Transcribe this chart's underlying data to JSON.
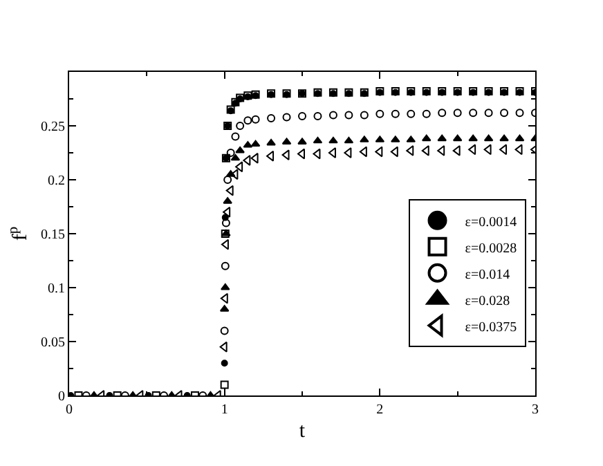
{
  "chart_data": {
    "type": "scatter",
    "xlabel": "t",
    "ylabel": "f$^{p}$",
    "series": [
      {
        "name": "ε=0.0014",
        "color": "#000000",
        "marker": "circle",
        "x": [
          0.01,
          0.26,
          0.51,
          0.76,
          1,
          1.005,
          1.01,
          1.02,
          1.04,
          1.07,
          1.1,
          1.15,
          1.2,
          1.3,
          1.4,
          1.5,
          1.6,
          1.7,
          1.8,
          1.9,
          2,
          2.1,
          2.2,
          2.3,
          2.4,
          2.5,
          2.6,
          2.7,
          2.8,
          2.9,
          3
        ],
        "values": [
          0,
          0,
          0,
          0,
          0.03,
          0.165,
          0.22,
          0.25,
          0.264,
          0.271,
          0.275,
          0.277,
          0.278,
          0.279,
          0.279,
          0.28,
          0.28,
          0.28,
          0.28,
          0.28,
          0.281,
          0.281,
          0.281,
          0.281,
          0.281,
          0.281,
          0.281,
          0.281,
          0.281,
          0.281,
          0.281
        ]
      },
      {
        "name": "ε=0.0028",
        "color": "#000000",
        "marker": "square",
        "x": [
          0.06,
          0.31,
          0.56,
          0.81,
          1,
          1.005,
          1.01,
          1.02,
          1.04,
          1.07,
          1.1,
          1.15,
          1.2,
          1.3,
          1.4,
          1.5,
          1.6,
          1.7,
          1.8,
          1.9,
          2,
          2.1,
          2.2,
          2.3,
          2.4,
          2.5,
          2.6,
          2.7,
          2.8,
          2.9,
          3
        ],
        "values": [
          0,
          0,
          0,
          0,
          0.01,
          0.15,
          0.22,
          0.25,
          0.265,
          0.272,
          0.276,
          0.278,
          0.279,
          0.28,
          0.28,
          0.28,
          0.281,
          0.281,
          0.281,
          0.281,
          0.282,
          0.282,
          0.282,
          0.282,
          0.282,
          0.282,
          0.282,
          0.282,
          0.282,
          0.282,
          0.282
        ]
      },
      {
        "name": "ε=0.014",
        "color": "#000000",
        "marker": "circle",
        "x": [
          0.11,
          0.36,
          0.61,
          0.86,
          1,
          1.005,
          1.01,
          1.02,
          1.04,
          1.07,
          1.1,
          1.15,
          1.2,
          1.3,
          1.4,
          1.5,
          1.6,
          1.7,
          1.8,
          1.9,
          2,
          2.1,
          2.2,
          2.3,
          2.4,
          2.5,
          2.6,
          2.7,
          2.8,
          2.9,
          3
        ],
        "values": [
          0,
          0,
          0,
          0,
          0.06,
          0.12,
          0.16,
          0.2,
          0.225,
          0.24,
          0.25,
          0.255,
          0.256,
          0.257,
          0.258,
          0.259,
          0.259,
          0.26,
          0.26,
          0.26,
          0.261,
          0.261,
          0.261,
          0.261,
          0.262,
          0.262,
          0.262,
          0.262,
          0.262,
          0.262,
          0.262
        ]
      },
      {
        "name": "ε=0.028",
        "color": "#000000",
        "marker": "triangle",
        "x": [
          0.16,
          0.41,
          0.66,
          0.91,
          1,
          1.005,
          1.01,
          1.02,
          1.04,
          1.07,
          1.1,
          1.15,
          1.2,
          1.3,
          1.4,
          1.5,
          1.6,
          1.7,
          1.8,
          1.9,
          2,
          2.1,
          2.2,
          2.3,
          2.4,
          2.5,
          2.6,
          2.7,
          2.8,
          2.9,
          3
        ],
        "values": [
          0,
          0,
          0,
          0,
          0.08,
          0.1,
          0.15,
          0.18,
          0.205,
          0.22,
          0.227,
          0.232,
          0.233,
          0.234,
          0.235,
          0.235,
          0.236,
          0.236,
          0.236,
          0.237,
          0.237,
          0.237,
          0.237,
          0.238,
          0.238,
          0.238,
          0.238,
          0.238,
          0.238,
          0.238,
          0.238
        ]
      },
      {
        "name": "ε=0.0375",
        "color": "#000000",
        "marker": "triangle",
        "x": [
          0.21,
          0.46,
          0.71,
          0.96,
          1,
          1.005,
          1.01,
          1.02,
          1.04,
          1.07,
          1.1,
          1.15,
          1.2,
          1.3,
          1.4,
          1.5,
          1.6,
          1.7,
          1.8,
          1.9,
          2,
          2.1,
          2.2,
          2.3,
          2.4,
          2.5,
          2.6,
          2.7,
          2.8,
          2.9,
          3
        ],
        "values": [
          0,
          0,
          0,
          0,
          0.045,
          0.09,
          0.14,
          0.17,
          0.19,
          0.205,
          0.212,
          0.218,
          0.22,
          0.222,
          0.223,
          0.224,
          0.224,
          0.225,
          0.225,
          0.226,
          0.226,
          0.226,
          0.227,
          0.227,
          0.227,
          0.227,
          0.228,
          0.228,
          0.228,
          0.228,
          0.228
        ]
      }
    ],
    "xlim": [
      0,
      3
    ],
    "xticks": [
      0,
      1,
      2,
      3
    ],
    "ylim": [
      0,
      0.3
    ],
    "yticks": [
      0,
      0.05,
      0.1,
      0.15,
      0.2,
      0.25
    ],
    "grid": false,
    "legend": "bottom right"
  }
}
